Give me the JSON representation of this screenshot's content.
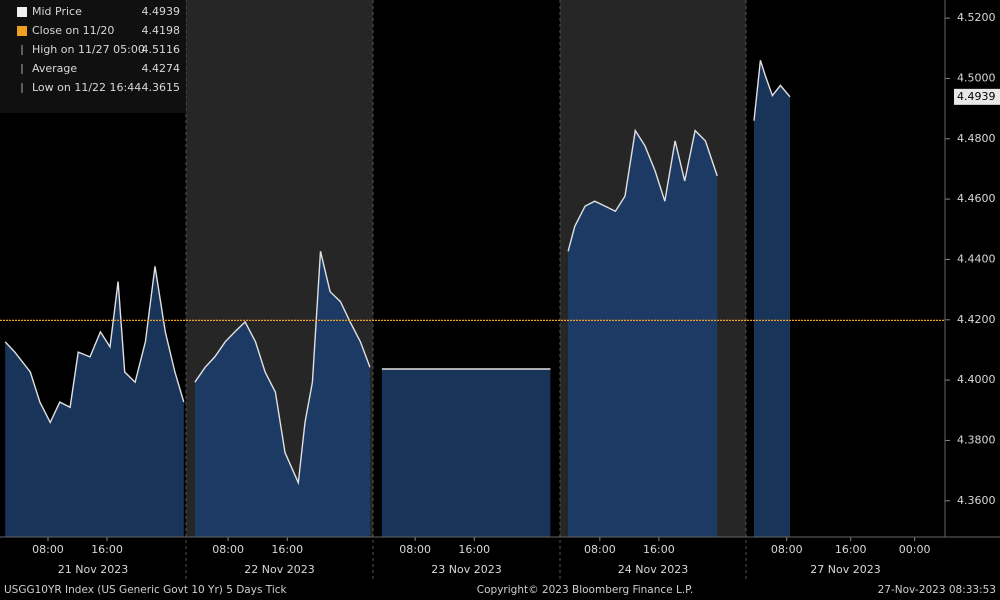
{
  "chart_data": {
    "type": "area",
    "ylim": [
      4.348,
      4.526
    ],
    "yticks": [
      {
        "value": 4.36,
        "label": "4.3600"
      },
      {
        "value": 4.38,
        "label": "4.3800"
      },
      {
        "value": 4.4,
        "label": "4.4000"
      },
      {
        "value": 4.42,
        "label": "4.4200"
      },
      {
        "value": 4.44,
        "label": "4.4400"
      },
      {
        "value": 4.46,
        "label": "4.4600"
      },
      {
        "value": 4.48,
        "label": "4.4800"
      },
      {
        "value": 4.5,
        "label": "4.5000"
      },
      {
        "value": 4.52,
        "label": "4.5200"
      }
    ],
    "color": "#1c3a63",
    "line_color": "#e0e0e0",
    "close_color": "#f0a020",
    "legend": [
      {
        "label": "Mid Price",
        "value": 4.4939
      },
      {
        "label": "Close on 11/20",
        "value": 4.4198
      },
      {
        "label": "High on 11/27 05:00",
        "value": 4.5116
      },
      {
        "label": "Average",
        "value": 4.4274
      },
      {
        "label": "Low on 11/22 16:44",
        "value": 4.3615
      }
    ],
    "panels": [
      {
        "label": "21 Nov 2023",
        "xlim": [
          1.5,
          26.7
        ],
        "xticks": [
          {
            "value": 8,
            "label": "08:00"
          },
          {
            "value": 16,
            "label": "16:00"
          }
        ],
        "x": [
          2.2,
          3.5,
          5.6,
          6.9,
          8.3,
          9.6,
          11.0,
          12.1,
          13.7,
          15.1,
          16.4,
          17.5,
          18.4,
          19.8,
          21.2,
          22.5,
          23.9,
          25.2,
          26.4
        ],
        "values": [
          4.4127,
          4.4093,
          4.4027,
          4.3927,
          4.386,
          4.3927,
          4.391,
          4.4093,
          4.4077,
          4.416,
          4.411,
          4.4327,
          4.4027,
          4.3993,
          4.4127,
          4.4377,
          4.416,
          4.4027,
          4.3927
        ]
      },
      {
        "label": "22 Nov 2023",
        "xlim": [
          2.3,
          27.6
        ],
        "xticks": [
          {
            "value": 8,
            "label": "08:00"
          },
          {
            "value": 16,
            "label": "16:00"
          }
        ],
        "x": [
          3.5,
          4.9,
          6.2,
          7.6,
          8.9,
          10.3,
          11.7,
          13.0,
          14.4,
          15.7,
          17.5,
          18.4,
          19.4,
          20.5,
          21.8,
          23.2,
          24.5,
          25.9,
          27.2
        ],
        "values": [
          4.3993,
          4.4043,
          4.4077,
          4.4127,
          4.416,
          4.4193,
          4.4127,
          4.4027,
          4.396,
          4.376,
          4.366,
          4.386,
          4.3993,
          4.4427,
          4.4293,
          4.426,
          4.4193,
          4.4127,
          4.4043
        ]
      },
      {
        "label": "23 Nov 2023",
        "xlim": [
          2.3,
          27.6
        ],
        "xticks": [
          {
            "value": 8,
            "label": "08:00"
          },
          {
            "value": 16,
            "label": "16:00"
          }
        ],
        "x": [
          3.5,
          26.3
        ],
        "values": [
          4.4037,
          4.4037
        ]
      },
      {
        "label": "24 Nov 2023",
        "xlim": [
          2.6,
          27.8
        ],
        "xticks": [
          {
            "value": 8,
            "label": "08:00"
          },
          {
            "value": 16,
            "label": "16:00"
          }
        ],
        "x": [
          3.7,
          4.6,
          6.0,
          7.3,
          8.7,
          10.1,
          11.4,
          12.8,
          14.1,
          15.5,
          16.8,
          18.2,
          19.5,
          20.9,
          22.3,
          23.9
        ],
        "values": [
          4.4427,
          4.451,
          4.4577,
          4.4593,
          4.4577,
          4.456,
          4.461,
          4.4827,
          4.4777,
          4.4693,
          4.4593,
          4.4793,
          4.466,
          4.4827,
          4.4793,
          4.4677
        ]
      },
      {
        "label": "27 Nov 2023",
        "xlim": [
          2.9,
          27.8
        ],
        "xticks": [
          {
            "value": 8,
            "label": "08:00"
          },
          {
            "value": 16,
            "label": "16:00"
          },
          {
            "value": 24,
            "label": "00:00"
          }
        ],
        "x": [
          3.9,
          4.7,
          5.3,
          6.2,
          7.2,
          8.4
        ],
        "values": [
          4.486,
          4.506,
          4.501,
          4.4943,
          4.4977,
          4.4939
        ]
      }
    ],
    "footer": {
      "left": "USGG10YR Index (US Generic Govt 10 Yr) 5 Days  Tick",
      "center": "Copyright© 2023 Bloomberg Finance L.P.",
      "right": "27-Nov-2023 08:33:53"
    }
  }
}
